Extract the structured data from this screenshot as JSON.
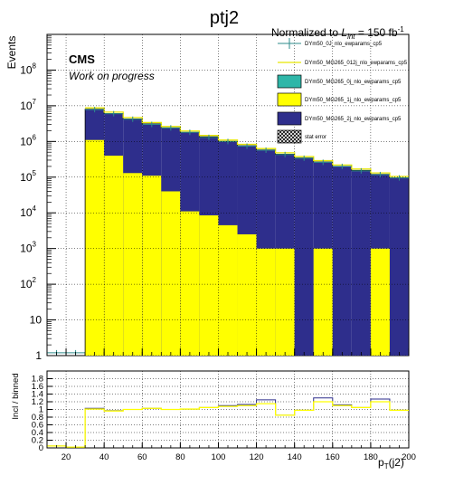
{
  "chart_data": {
    "type": "bar",
    "title": "ptj2",
    "normalization": {
      "prefix": "Normalized to",
      "L": "L",
      "sub": "int",
      "value": "= 150 fb",
      "sup": "-1"
    },
    "cms_label": "CMS",
    "subtitle": "Work on progress",
    "xlabel": {
      "p": "p",
      "sub": "T",
      "rest": "(j2)"
    },
    "ylabel": "Events",
    "ratio_ylabel": "Incl / binned",
    "bin_edges": [
      10,
      20,
      30,
      40,
      50,
      60,
      70,
      80,
      90,
      100,
      110,
      120,
      130,
      140,
      150,
      160,
      170,
      180,
      190,
      200
    ],
    "xlim": [
      10,
      200
    ],
    "ylim": [
      1,
      1000000000
    ],
    "yscale": "log",
    "x_ticks": [
      20,
      40,
      60,
      80,
      100,
      120,
      140,
      160,
      180,
      200
    ],
    "y_ticks": [
      {
        "v": 1,
        "label": "1"
      },
      {
        "v": 10,
        "label": "10"
      },
      {
        "v": 100,
        "label": "10",
        "exp": "2"
      },
      {
        "v": 1000,
        "label": "10",
        "exp": "3"
      },
      {
        "v": 10000,
        "label": "10",
        "exp": "4"
      },
      {
        "v": 100000,
        "label": "10",
        "exp": "5"
      },
      {
        "v": 1000000,
        "label": "10",
        "exp": "6"
      },
      {
        "v": 10000000,
        "label": "10",
        "exp": "7"
      },
      {
        "v": 100000000,
        "label": "10",
        "exp": "8"
      }
    ],
    "series": [
      {
        "name": "DYm50_0J_nlo_ewparams_cp5",
        "kind": "points",
        "color": "#2e8b8b",
        "values": [
          1.2,
          1.2,
          7800000,
          6000000,
          4200000,
          3000000,
          2400000,
          1800000,
          1300000,
          1000000,
          740000,
          570000,
          430000,
          340000,
          260000,
          200000,
          150000,
          118000,
          95000
        ]
      },
      {
        "name": "DYm50_MG265_012j_nlo_ewparams_cp5",
        "kind": "line",
        "color": "#e6e600",
        "values": [
          null,
          null,
          8000000,
          6100000,
          4300000,
          3100000,
          2400000,
          1800000,
          1350000,
          1000000,
          760000,
          580000,
          440000,
          345000,
          265000,
          200000,
          155000,
          120000,
          96000
        ]
      },
      {
        "name": "DYm50_MG265_0j_nlo_ewparams_cp5",
        "kind": "fill",
        "color": "#2fb6a8",
        "values": [
          0,
          0,
          0,
          0,
          0,
          0,
          0,
          0,
          0,
          0,
          0,
          0,
          0,
          0,
          0,
          0,
          0,
          0,
          0
        ]
      },
      {
        "name": "DYm50_MG265_1j_nlo_ewparams_cp5",
        "kind": "fill",
        "color": "#ffff00",
        "values": [
          0,
          0,
          1100000,
          400000,
          130000,
          110000,
          40000,
          11000,
          8500,
          4500,
          2500,
          1000,
          1000,
          0,
          1000,
          0,
          0,
          1000,
          0
        ]
      },
      {
        "name": "DYm50_MG265_2j_nlo_ewparams_cp5",
        "kind": "fill",
        "color": "#2e2e8c",
        "values": [
          0,
          0,
          8000000,
          6100000,
          4300000,
          3100000,
          2400000,
          1800000,
          1350000,
          1000000,
          760000,
          580000,
          440000,
          345000,
          265000,
          200000,
          155000,
          120000,
          96000
        ]
      },
      {
        "name": "stat error",
        "kind": "hatch",
        "color": "#000000",
        "values": []
      }
    ],
    "ratio": {
      "ylim": [
        0,
        2
      ],
      "y_ticks": [
        0,
        0.2,
        0.4,
        0.6,
        0.8,
        1,
        1.2,
        1.4,
        1.6,
        1.8
      ],
      "y_tick_labels": [
        "0",
        "0.2",
        "0.4",
        "0.6",
        "0.8",
        "1",
        "1.2",
        "1.4",
        "1.6",
        "1.8"
      ],
      "values": [
        0.05,
        0.02,
        1.03,
        0.97,
        1.0,
        1.03,
        1.0,
        1.01,
        1.05,
        1.1,
        1.13,
        1.25,
        0.85,
        0.98,
        1.3,
        1.12,
        1.05,
        1.27,
        0.98
      ],
      "values_alt": [
        0.05,
        0.02,
        1.01,
        0.96,
        1.0,
        1.03,
        1.0,
        1.01,
        1.05,
        1.08,
        1.1,
        1.15,
        0.85,
        0.98,
        1.2,
        1.1,
        1.05,
        1.2,
        0.98
      ]
    },
    "grid": true,
    "legend_position": "top-right"
  }
}
